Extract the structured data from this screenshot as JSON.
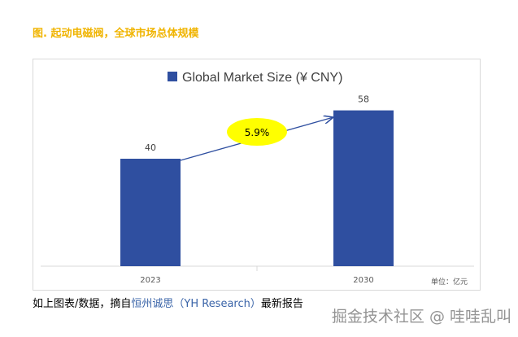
{
  "header": {
    "figure_title": "图. 起动电磁阀，全球市场总体规模"
  },
  "chart_data": {
    "type": "bar",
    "categories": [
      "2023",
      "2030"
    ],
    "series": [
      {
        "name": "Global Market Size (¥ CNY)",
        "values": [
          40,
          58
        ]
      }
    ],
    "data_labels": [
      "40",
      "58"
    ],
    "annotation": "5.9%",
    "unit_note": "单位：亿元",
    "ylim": [
      0,
      60
    ],
    "grid": false,
    "legend_placement": "top",
    "colors": {
      "bar": "#2f4fa0",
      "annotation_fill": "#ffff00",
      "arrow": "#2f4fa0"
    }
  },
  "footer": {
    "caption_prefix": "如上图表/数据，摘自",
    "caption_source": "恒州诚思（YH Research）",
    "caption_suffix": "最新报告",
    "watermark": "掘金技术社区 @ 哇哇乱叫"
  }
}
